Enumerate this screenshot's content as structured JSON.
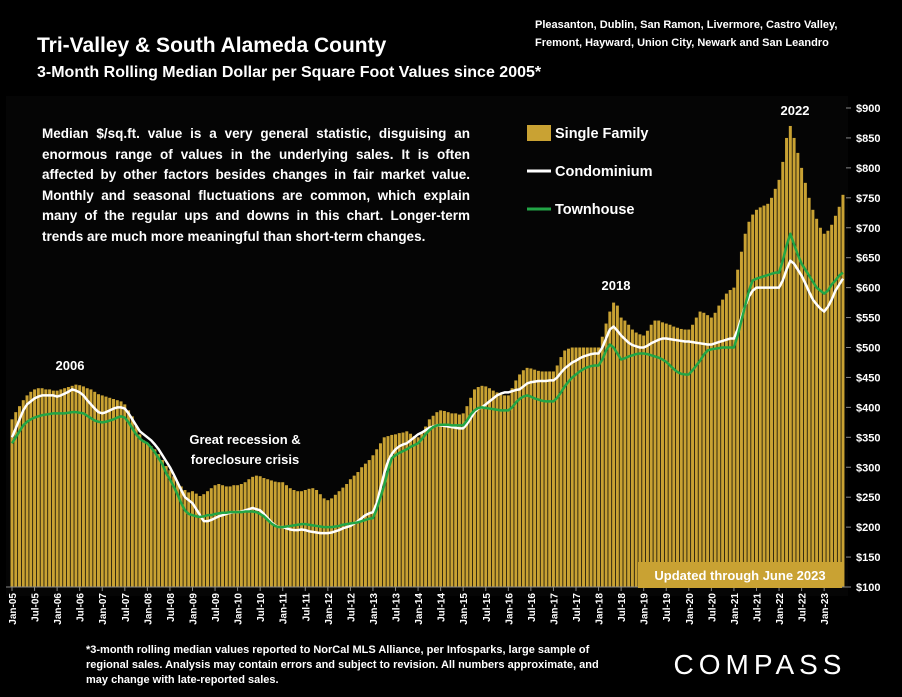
{
  "chart_data": {
    "type": "bar",
    "title": "Tri-Valley & South Alameda County",
    "subtitle": "3-Month Rolling Median Dollar per Square Foot Values since 2005*",
    "region_lines": [
      "Pleasanton, Dublin, San Ramon, Livermore, Castro Valley,",
      "Fremont, Hayward, Union City, Newark and San Leandro"
    ],
    "note": "Median $/sq.ft. value is a very general statistic, disguising an enormous range of values in the underlying sales. It is often affected by other factors besides changes in fair market value. Monthly and seasonal fluctuations are common, which explain many of the regular ups and downs in this chart. Longer-term trends are much more meaningful than short-term changes.",
    "annotations": {
      "a2006": "2006",
      "recession": [
        "Great recession &",
        "foreclosure crisis"
      ],
      "a2018": "2018",
      "a2022": "2022",
      "updated": "Updated through June 2023"
    },
    "footnote": [
      "*3-month rolling median values reported to NorCal MLS Alliance, per Infosparks, large sample of",
      "regional sales. Analysis may contain errors and subject to revision. All numbers approximate, and",
      "may change with late-reported sales."
    ],
    "logo": "COMPASS",
    "ylim": [
      100,
      900
    ],
    "yticks": [
      {
        "value": 100,
        "label": "$100"
      },
      {
        "value": 150,
        "label": "$150"
      },
      {
        "value": 200,
        "label": "$200"
      },
      {
        "value": 250,
        "label": "$250"
      },
      {
        "value": 300,
        "label": "$300"
      },
      {
        "value": 350,
        "label": "$350"
      },
      {
        "value": 400,
        "label": "$400"
      },
      {
        "value": 450,
        "label": "$450"
      },
      {
        "value": 500,
        "label": "$500"
      },
      {
        "value": 550,
        "label": "$550"
      },
      {
        "value": 600,
        "label": "$600"
      },
      {
        "value": 650,
        "label": "$650"
      },
      {
        "value": 700,
        "label": "$700"
      },
      {
        "value": 750,
        "label": "$750"
      },
      {
        "value": 800,
        "label": "$800"
      },
      {
        "value": 850,
        "label": "$850"
      },
      {
        "value": 900,
        "label": "$900"
      }
    ],
    "categories": [
      "Jan-05",
      null,
      null,
      null,
      null,
      null,
      "Jul-05",
      null,
      null,
      null,
      null,
      null,
      "Jan-06",
      null,
      null,
      null,
      null,
      null,
      "Jul-06",
      null,
      null,
      null,
      null,
      null,
      "Jan-07",
      null,
      null,
      null,
      null,
      null,
      "Jul-07",
      null,
      null,
      null,
      null,
      null,
      "Jan-08",
      null,
      null,
      null,
      null,
      null,
      "Jul-08",
      null,
      null,
      null,
      null,
      null,
      "Jan-09",
      null,
      null,
      null,
      null,
      null,
      "Jul-09",
      null,
      null,
      null,
      null,
      null,
      "Jan-10",
      null,
      null,
      null,
      null,
      null,
      "Jul-10",
      null,
      null,
      null,
      null,
      null,
      "Jan-11",
      null,
      null,
      null,
      null,
      null,
      "Jul-11",
      null,
      null,
      null,
      null,
      null,
      "Jan-12",
      null,
      null,
      null,
      null,
      null,
      "Jul-12",
      null,
      null,
      null,
      null,
      null,
      "Jan-13",
      null,
      null,
      null,
      null,
      null,
      "Jul-13",
      null,
      null,
      null,
      null,
      null,
      "Jan-14",
      null,
      null,
      null,
      null,
      null,
      "Jul-14",
      null,
      null,
      null,
      null,
      null,
      "Jan-15",
      null,
      null,
      null,
      null,
      null,
      "Jul-15",
      null,
      null,
      null,
      null,
      null,
      "Jan-16",
      null,
      null,
      null,
      null,
      null,
      "Jul-16",
      null,
      null,
      null,
      null,
      null,
      "Jan-17",
      null,
      null,
      null,
      null,
      null,
      "Jul-17",
      null,
      null,
      null,
      null,
      null,
      "Jan-18",
      null,
      null,
      null,
      null,
      null,
      "Jul-18",
      null,
      null,
      null,
      null,
      null,
      "Jan-19",
      null,
      null,
      null,
      null,
      null,
      "Jul-19",
      null,
      null,
      null,
      null,
      null,
      "Jan-20",
      null,
      null,
      null,
      null,
      null,
      "Jul-20",
      null,
      null,
      null,
      null,
      null,
      "Jan-21",
      null,
      null,
      null,
      null,
      null,
      "Jul-21",
      null,
      null,
      null,
      null,
      null,
      "Jan-22",
      null,
      null,
      null,
      null,
      null,
      "Jul-22",
      null,
      null,
      null,
      null,
      null,
      "Jan-23",
      null,
      null,
      null,
      null,
      null
    ],
    "series": [
      {
        "name": "Single Family",
        "color": "#c9a233",
        "kind": "bar",
        "values": [
          380,
          392,
          402,
          412,
          420,
          426,
          430,
          432,
          432,
          430,
          430,
          428,
          428,
          430,
          432,
          434,
          436,
          438,
          437,
          435,
          432,
          430,
          426,
          422,
          420,
          418,
          416,
          414,
          412,
          410,
          405,
          395,
          385,
          370,
          355,
          345,
          340,
          335,
          330,
          322,
          312,
          302,
          295,
          285,
          275,
          268,
          262,
          258,
          260,
          256,
          252,
          255,
          260,
          265,
          270,
          272,
          270,
          268,
          268,
          270,
          270,
          272,
          275,
          280,
          284,
          286,
          285,
          282,
          280,
          278,
          276,
          275,
          275,
          270,
          265,
          262,
          260,
          260,
          262,
          264,
          265,
          262,
          255,
          248,
          245,
          248,
          254,
          260,
          266,
          272,
          280,
          286,
          292,
          300,
          306,
          312,
          320,
          330,
          340,
          350,
          352,
          354,
          355,
          357,
          358,
          360,
          356,
          352,
          350,
          358,
          368,
          380,
          386,
          392,
          395,
          394,
          392,
          390,
          390,
          388,
          390,
          402,
          416,
          430,
          434,
          436,
          435,
          432,
          428,
          425,
          422,
          420,
          420,
          432,
          445,
          455,
          462,
          466,
          465,
          463,
          461,
          460,
          460,
          460,
          460,
          470,
          484,
          495,
          498,
          500,
          500,
          500,
          500,
          500,
          500,
          500,
          500,
          518,
          540,
          560,
          575,
          570,
          550,
          545,
          538,
          530,
          525,
          522,
          520,
          528,
          538,
          545,
          545,
          542,
          540,
          538,
          535,
          533,
          531,
          530,
          530,
          538,
          550,
          560,
          558,
          554,
          550,
          558,
          570,
          580,
          590,
          596,
          600,
          630,
          660,
          690,
          710,
          722,
          730,
          734,
          737,
          740,
          750,
          765,
          780,
          810,
          850,
          870,
          850,
          825,
          800,
          775,
          750,
          730,
          715,
          700,
          690,
          695,
          705,
          720,
          735,
          755
        ]
      },
      {
        "name": "Condominium",
        "color": "#ffffff",
        "kind": "line",
        "values": [
          350,
          365,
          380,
          395,
          405,
          410,
          415,
          418,
          420,
          420,
          420,
          420,
          418,
          420,
          423,
          426,
          430,
          428,
          425,
          420,
          412,
          405,
          398,
          392,
          390,
          392,
          395,
          398,
          400,
          400,
          398,
          390,
          380,
          370,
          360,
          355,
          350,
          345,
          338,
          330,
          320,
          310,
          300,
          288,
          275,
          262,
          250,
          245,
          240,
          230,
          220,
          210,
          210,
          212,
          215,
          218,
          220,
          222,
          224,
          225,
          225,
          226,
          228,
          230,
          232,
          230,
          228,
          222,
          215,
          208,
          203,
          200,
          200,
          198,
          196,
          195,
          195,
          196,
          195,
          193,
          192,
          191,
          190,
          190,
          190,
          191,
          193,
          195,
          198,
          200,
          202,
          206,
          210,
          215,
          220,
          223,
          225,
          240,
          265,
          290,
          310,
          322,
          330,
          335,
          338,
          340,
          345,
          350,
          355,
          358,
          362,
          366,
          368,
          370,
          370,
          369,
          368,
          367,
          366,
          365,
          365,
          372,
          382,
          392,
          398,
          400,
          405,
          410,
          415,
          420,
          423,
          425,
          425,
          427,
          429,
          430,
          435,
          440,
          442,
          443,
          444,
          444,
          444,
          445,
          445,
          450,
          458,
          465,
          470,
          475,
          478,
          482,
          485,
          487,
          489,
          490,
          490,
          500,
          515,
          530,
          535,
          528,
          520,
          514,
          508,
          504,
          502,
          500,
          500,
          503,
          507,
          510,
          513,
          515,
          515,
          514,
          513,
          512,
          511,
          510,
          510,
          509,
          508,
          507,
          506,
          505,
          505,
          507,
          509,
          511,
          513,
          515,
          515,
          530,
          550,
          570,
          585,
          595,
          600,
          600,
          600,
          600,
          600,
          600,
          600,
          612,
          630,
          645,
          640,
          630,
          620,
          607,
          593,
          580,
          572,
          565,
          560,
          568,
          580,
          595,
          605,
          615
        ]
      },
      {
        "name": "Townhouse",
        "color": "#22a546",
        "kind": "line",
        "values": [
          340,
          350,
          360,
          370,
          376,
          380,
          383,
          385,
          387,
          388,
          389,
          390,
          390,
          390,
          390,
          391,
          392,
          392,
          391,
          390,
          386,
          382,
          378,
          376,
          375,
          376,
          378,
          380,
          383,
          385,
          383,
          375,
          365,
          355,
          348,
          343,
          340,
          333,
          325,
          315,
          305,
          290,
          280,
          268,
          255,
          240,
          228,
          222,
          220,
          218,
          217,
          218,
          220,
          220,
          222,
          223,
          224,
          224,
          225,
          225,
          225,
          225,
          226,
          226,
          226,
          225,
          222,
          218,
          212,
          206,
          202,
          200,
          200,
          201,
          202,
          203,
          204,
          205,
          205,
          204,
          203,
          202,
          201,
          200,
          200,
          200,
          201,
          202,
          204,
          205,
          206,
          207,
          208,
          210,
          212,
          214,
          215,
          230,
          250,
          270,
          295,
          315,
          320,
          324,
          327,
          330,
          334,
          337,
          340,
          347,
          355,
          362,
          367,
          370,
          371,
          371,
          371,
          370,
          370,
          370,
          370,
          378,
          388,
          395,
          399,
          400,
          399,
          398,
          397,
          396,
          395,
          395,
          395,
          400,
          408,
          414,
          418,
          420,
          418,
          415,
          413,
          411,
          410,
          410,
          410,
          416,
          425,
          435,
          443,
          450,
          455,
          460,
          464,
          467,
          469,
          470,
          470,
          480,
          495,
          505,
          500,
          490,
          480,
          482,
          485,
          487,
          489,
          490,
          490,
          489,
          487,
          485,
          483,
          480,
          476,
          470,
          464,
          459,
          456,
          455,
          455,
          462,
          470,
          478,
          488,
          495,
          497,
          498,
          499,
          500,
          500,
          500,
          500,
          520,
          545,
          570,
          595,
          612,
          615,
          617,
          619,
          621,
          623,
          625,
          625,
          645,
          670,
          690,
          672,
          655,
          640,
          630,
          620,
          610,
          600,
          595,
          590,
          595,
          605,
          612,
          620,
          625
        ]
      }
    ]
  }
}
